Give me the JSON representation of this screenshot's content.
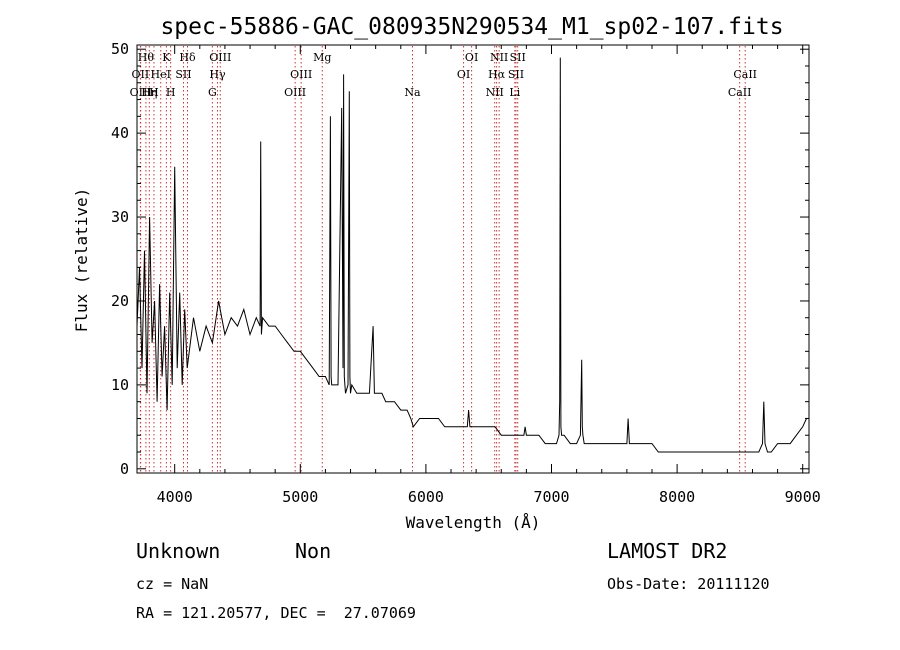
{
  "chart_data": {
    "type": "line",
    "title": "spec-55886-GAC_080935N290534_M1_sp02-107.fits",
    "xlabel": "Wavelength (Å)",
    "ylabel": "Flux (relative)",
    "xlim": [
      3700,
      9050
    ],
    "ylim": [
      -0.5,
      50.5
    ],
    "xticks": [
      4000,
      5000,
      6000,
      7000,
      8000,
      9000
    ],
    "yticks": [
      0,
      10,
      20,
      30,
      40,
      50
    ],
    "grid": false,
    "legend": "none",
    "line_color": "#000000",
    "marker_color": "#cc3333",
    "series": [
      {
        "x": [
          3700,
          3720,
          3740,
          3760,
          3780,
          3800,
          3820,
          3840,
          3860,
          3880,
          3900,
          3920,
          3940,
          3960,
          3980,
          4000,
          4020,
          4040,
          4060,
          4080,
          4100,
          4150,
          4200,
          4250,
          4300,
          4350,
          4400,
          4450,
          4500,
          4550,
          4600,
          4650,
          4680,
          4685,
          4690,
          4700,
          4750,
          4800,
          4850,
          4900,
          4950,
          5000,
          5050,
          5100,
          5150,
          5200,
          5230,
          5240,
          5245,
          5250,
          5260,
          5300,
          5330,
          5340,
          5345,
          5350,
          5360,
          5380,
          5390,
          5395,
          5400,
          5410,
          5450,
          5500,
          5550,
          5580,
          5590,
          5600,
          5650,
          5680,
          5700,
          5720,
          5750,
          5800,
          5850,
          5880,
          5900,
          5950,
          6000,
          6050,
          6100,
          6150,
          6200,
          6250,
          6300,
          6330,
          6340,
          6350,
          6400,
          6450,
          6500,
          6550,
          6600,
          6650,
          6700,
          6750,
          6780,
          6790,
          6800,
          6850,
          6900,
          6950,
          7000,
          7040,
          7060,
          7065,
          7070,
          7075,
          7080,
          7100,
          7150,
          7200,
          7230,
          7240,
          7245,
          7250,
          7260,
          7300,
          7350,
          7400,
          7450,
          7500,
          7550,
          7600,
          7610,
          7620,
          7650,
          7700,
          7750,
          7800,
          7850,
          7900,
          7950,
          8000,
          8050,
          8100,
          8150,
          8200,
          8250,
          8300,
          8350,
          8400,
          8450,
          8500,
          8550,
          8600,
          8650,
          8680,
          8690,
          8700,
          8720,
          8750,
          8800,
          8850,
          8900,
          8950,
          9000,
          9030
        ],
        "values": [
          17,
          24,
          12,
          26,
          9,
          30,
          15,
          20,
          8,
          22,
          11,
          17,
          7,
          21,
          10,
          36,
          12,
          21,
          10,
          19,
          12,
          18,
          14,
          17,
          15,
          20,
          16,
          18,
          17,
          19,
          16,
          18,
          17,
          39,
          16,
          18,
          17,
          17,
          16,
          15,
          14,
          14,
          13,
          12,
          11,
          11,
          10,
          42,
          11,
          10,
          10,
          10,
          43,
          12,
          47,
          11,
          9,
          10,
          45,
          11,
          9,
          10,
          9,
          9,
          9,
          17,
          9,
          9,
          9,
          8,
          8,
          8,
          8,
          7,
          7,
          6,
          5,
          6,
          6,
          6,
          6,
          5,
          5,
          5,
          5,
          5,
          7,
          5,
          5,
          5,
          5,
          5,
          4,
          4,
          4,
          4,
          4,
          5,
          4,
          4,
          4,
          3,
          3,
          3,
          4,
          8,
          49,
          5,
          4,
          4,
          3,
          3,
          4,
          13,
          5,
          4,
          3,
          3,
          3,
          3,
          3,
          3,
          3,
          3,
          6,
          3,
          3,
          3,
          3,
          3,
          2,
          2,
          2,
          2,
          2,
          2,
          2,
          2,
          2,
          2,
          2,
          2,
          2,
          2,
          2,
          2,
          2,
          3,
          8,
          3,
          2,
          2,
          3,
          3,
          3,
          4,
          5,
          6
        ]
      }
    ],
    "line_markers": [
      {
        "x": 3727,
        "label": "OII",
        "row": 1
      },
      {
        "x": 3729,
        "label": "OIII",
        "row": 2
      },
      {
        "x": 3771,
        "label": "Hθ",
        "row": 0
      },
      {
        "x": 3798,
        "label": "Hη",
        "row": 2
      },
      {
        "x": 3835,
        "label": "H",
        "row": 2
      },
      {
        "x": 3889,
        "label": "HeI",
        "row": 1
      },
      {
        "x": 3934,
        "label": "K",
        "row": 0
      },
      {
        "x": 3968,
        "label": "H",
        "row": 2
      },
      {
        "x": 4070,
        "label": "SII",
        "row": 1
      },
      {
        "x": 4102,
        "label": "Hδ",
        "row": 0
      },
      {
        "x": 4300,
        "label": "G",
        "row": 2
      },
      {
        "x": 4341,
        "label": "Hγ",
        "row": 1
      },
      {
        "x": 4363,
        "label": "OIII",
        "row": 0
      },
      {
        "x": 4959,
        "label": "OIII",
        "row": 2
      },
      {
        "x": 5007,
        "label": "OIII",
        "row": 1
      },
      {
        "x": 5175,
        "label": "Mg",
        "row": 0
      },
      {
        "x": 5893,
        "label": "Na",
        "row": 2
      },
      {
        "x": 6300,
        "label": "OI",
        "row": 1
      },
      {
        "x": 6364,
        "label": "OI",
        "row": 0
      },
      {
        "x": 6548,
        "label": "NII",
        "row": 2
      },
      {
        "x": 6563,
        "label": "Hα",
        "row": 1
      },
      {
        "x": 6583,
        "label": "NII",
        "row": 0
      },
      {
        "x": 6708,
        "label": "Li",
        "row": 2
      },
      {
        "x": 6717,
        "label": "SII",
        "row": 1
      },
      {
        "x": 6731,
        "label": "SII",
        "row": 0
      },
      {
        "x": 8498,
        "label": "CaII",
        "row": 2
      },
      {
        "x": 8542,
        "label": "CaII",
        "row": 1
      }
    ]
  },
  "info": {
    "classification": "Unknown",
    "subclass": "Non",
    "survey": "LAMOST DR2",
    "redshift": "cz = NaN",
    "obs_date": "Obs-Date: 20111120",
    "coords": "RA = 121.20577, DEC =  27.07069"
  }
}
